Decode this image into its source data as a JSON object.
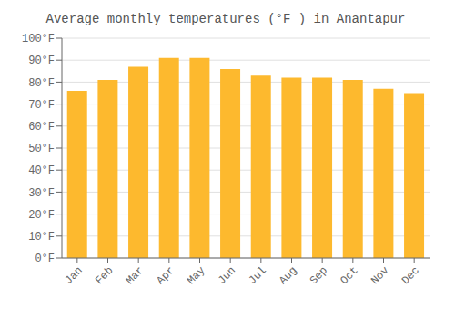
{
  "chart_data": {
    "type": "bar",
    "title": "Average monthly temperatures (°F ) in Anantapur",
    "categories": [
      "Jan",
      "Feb",
      "Mar",
      "Apr",
      "May",
      "Jun",
      "Jul",
      "Aug",
      "Sep",
      "Oct",
      "Nov",
      "Dec"
    ],
    "values": [
      76,
      81,
      87,
      91,
      91,
      86,
      83,
      82,
      82,
      81,
      77,
      75
    ],
    "color": "#FDB92E",
    "ylim": [
      0,
      100
    ],
    "yticks": [
      {
        "value": 0,
        "label": "0°F"
      },
      {
        "value": 10,
        "label": "10°F"
      },
      {
        "value": 20,
        "label": "20°F"
      },
      {
        "value": 30,
        "label": "30°F"
      },
      {
        "value": 40,
        "label": "40°F"
      },
      {
        "value": 50,
        "label": "50°F"
      },
      {
        "value": 60,
        "label": "60°F"
      },
      {
        "value": 70,
        "label": "70°F"
      },
      {
        "value": 80,
        "label": "80°F"
      },
      {
        "value": 90,
        "label": "90°F"
      },
      {
        "value": 100,
        "label": "100°F"
      }
    ],
    "grid": true
  }
}
